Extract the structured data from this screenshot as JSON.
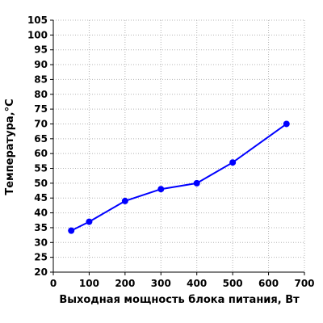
{
  "chart_data": {
    "type": "line",
    "xlabel": "Выходная мощность блока питания, Вт",
    "ylabel": "Температура,°С",
    "xlim": [
      0,
      700
    ],
    "ylim": [
      20,
      105
    ],
    "x_ticks": [
      0,
      100,
      200,
      300,
      400,
      500,
      600,
      700
    ],
    "y_ticks": [
      20,
      25,
      30,
      35,
      40,
      45,
      50,
      55,
      60,
      65,
      70,
      75,
      80,
      85,
      90,
      95,
      100,
      105
    ],
    "grid": true,
    "series_color": "#0000ff",
    "series": [
      {
        "x": [
          50,
          100,
          200,
          300,
          400,
          500,
          650
        ],
        "y": [
          34,
          37,
          44,
          48,
          50,
          57,
          70
        ]
      }
    ]
  }
}
